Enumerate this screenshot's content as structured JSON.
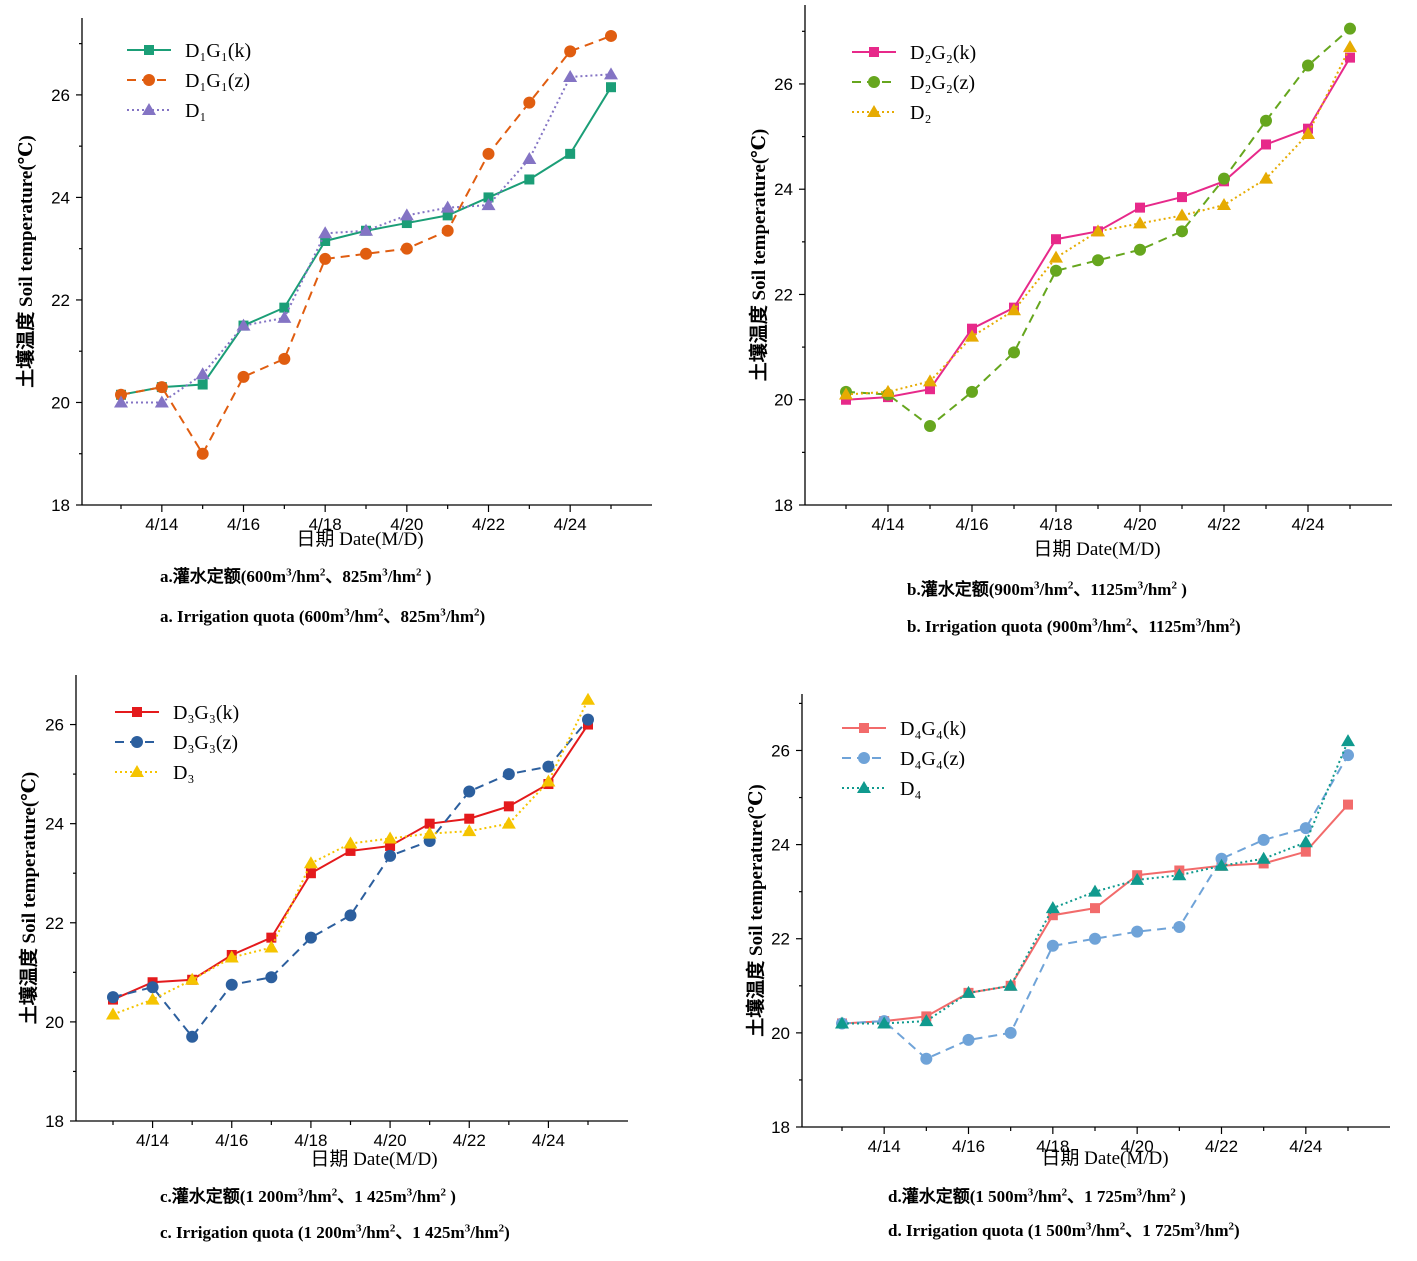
{
  "chart_data": [
    {
      "type": "line",
      "id": "a",
      "title": "",
      "ylabel": "土壤温度 Soil temperature(℃)",
      "xlabel": "日期  Date(M/D)",
      "x_ticks": [
        "4/14",
        "4/16",
        "4/18",
        "4/20",
        "4/22",
        "4/24"
      ],
      "x": [
        "4/13",
        "4/14",
        "4/15",
        "4/16",
        "4/17",
        "4/18",
        "4/19",
        "4/20",
        "4/21",
        "4/22",
        "4/23",
        "4/24",
        "4/25"
      ],
      "ylim": [
        18,
        27.5
      ],
      "y_ticks": [
        18,
        20,
        22,
        24,
        26
      ],
      "legend_position": "top-left",
      "grid": false,
      "series": [
        {
          "name": "D₁G₁(k)",
          "color": "#1b9e77",
          "marker": "square",
          "dash": "solid",
          "values": [
            20.15,
            20.3,
            20.35,
            21.5,
            21.85,
            23.15,
            23.35,
            23.5,
            23.65,
            24.0,
            24.35,
            24.85,
            26.15
          ]
        },
        {
          "name": "D₁G₁(z)",
          "color": "#e05d10",
          "marker": "circle",
          "dash": "dashed",
          "values": [
            20.15,
            20.3,
            19.0,
            20.5,
            20.85,
            22.8,
            22.9,
            23.0,
            23.35,
            24.85,
            25.85,
            26.85,
            27.15
          ]
        },
        {
          "name": "D₁",
          "color": "#8474c4",
          "marker": "triangle",
          "dash": "dotted",
          "values": [
            20.0,
            20.0,
            20.55,
            21.5,
            21.65,
            23.3,
            23.35,
            23.65,
            23.8,
            23.85,
            24.75,
            26.35,
            26.4
          ]
        }
      ]
    },
    {
      "type": "line",
      "id": "b",
      "title": "",
      "ylabel": "土壤温度 Soil temperature(℃)",
      "xlabel": "日期  Date(M/D)",
      "x_ticks": [
        "4/14",
        "4/16",
        "4/18",
        "4/20",
        "4/22",
        "4/24"
      ],
      "x": [
        "4/13",
        "4/14",
        "4/15",
        "4/16",
        "4/17",
        "4/18",
        "4/19",
        "4/20",
        "4/21",
        "4/22",
        "4/23",
        "4/24",
        "4/25"
      ],
      "ylim": [
        18,
        27.5
      ],
      "y_ticks": [
        18,
        20,
        22,
        24,
        26
      ],
      "legend_position": "top-left",
      "grid": false,
      "series": [
        {
          "name": "D₂G₂(k)",
          "color": "#e7298a",
          "marker": "square",
          "dash": "solid",
          "values": [
            20.0,
            20.05,
            20.2,
            21.35,
            21.75,
            23.05,
            23.2,
            23.65,
            23.85,
            24.15,
            24.85,
            25.15,
            26.5
          ]
        },
        {
          "name": "D₂G₂(z)",
          "color": "#66a61e",
          "marker": "circle",
          "dash": "dashed",
          "values": [
            20.15,
            20.1,
            19.5,
            20.15,
            20.9,
            22.45,
            22.65,
            22.85,
            23.2,
            24.2,
            25.3,
            26.35,
            27.05
          ]
        },
        {
          "name": "D₂",
          "color": "#e6ab02",
          "marker": "triangle",
          "dash": "dotted",
          "values": [
            20.1,
            20.15,
            20.35,
            21.2,
            21.7,
            22.7,
            23.2,
            23.35,
            23.5,
            23.7,
            24.2,
            25.05,
            26.7
          ]
        }
      ]
    },
    {
      "type": "line",
      "id": "c",
      "title": "",
      "ylabel": "土壤温度 Soil temperature(℃)",
      "xlabel": "日期  Date(M/D)",
      "x_ticks": [
        "4/14",
        "4/16",
        "4/18",
        "4/20",
        "4/22",
        "4/24"
      ],
      "x": [
        "4/13",
        "4/14",
        "4/15",
        "4/16",
        "4/17",
        "4/18",
        "4/19",
        "4/20",
        "4/21",
        "4/22",
        "4/23",
        "4/24",
        "4/25"
      ],
      "ylim": [
        18,
        27
      ],
      "y_ticks": [
        18,
        20,
        22,
        24,
        26
      ],
      "legend_position": "top-left",
      "grid": false,
      "series": [
        {
          "name": "D₃G₃(k)",
          "color": "#e41a1c",
          "marker": "square",
          "dash": "solid",
          "values": [
            20.45,
            20.8,
            20.85,
            21.35,
            21.7,
            23.0,
            23.45,
            23.55,
            24.0,
            24.1,
            24.35,
            24.8,
            26.0
          ]
        },
        {
          "name": "D₃G₃(z)",
          "color": "#2c5f9e",
          "marker": "circle",
          "dash": "dashed",
          "values": [
            20.5,
            20.7,
            19.7,
            20.75,
            20.9,
            21.7,
            22.15,
            23.35,
            23.65,
            24.65,
            25.0,
            25.15,
            26.1
          ]
        },
        {
          "name": "D₃",
          "color": "#f5c400",
          "marker": "triangle",
          "dash": "dotted",
          "values": [
            20.15,
            20.45,
            20.85,
            21.3,
            21.5,
            23.2,
            23.6,
            23.7,
            23.8,
            23.85,
            24.0,
            24.85,
            26.5
          ]
        }
      ]
    },
    {
      "type": "line",
      "id": "d",
      "title": "",
      "ylabel": "土壤温度 Soil temperature(℃)",
      "xlabel": "日期  Date(M/D)",
      "x_ticks": [
        "4/14",
        "4/16",
        "4/18",
        "4/20",
        "4/22",
        "4/24"
      ],
      "x": [
        "4/13",
        "4/14",
        "4/15",
        "4/16",
        "4/17",
        "4/18",
        "4/19",
        "4/20",
        "4/21",
        "4/22",
        "4/23",
        "4/24",
        "4/25"
      ],
      "ylim": [
        18,
        27.2
      ],
      "y_ticks": [
        18,
        20,
        22,
        24,
        26
      ],
      "legend_position": "top-left",
      "grid": false,
      "series": [
        {
          "name": "D₄G₄(k)",
          "color": "#f26b6b",
          "marker": "square",
          "dash": "solid",
          "values": [
            20.2,
            20.25,
            20.35,
            20.85,
            21.0,
            22.5,
            22.65,
            23.35,
            23.45,
            23.55,
            23.6,
            23.85,
            24.85
          ]
        },
        {
          "name": "D₄G₄(z)",
          "color": "#6fa3d8",
          "marker": "circle",
          "dash": "dashed",
          "values": [
            20.2,
            20.25,
            19.45,
            19.85,
            20.0,
            21.85,
            22.0,
            22.15,
            22.25,
            23.7,
            24.1,
            24.35,
            25.9
          ]
        },
        {
          "name": "D₄",
          "color": "#109a8e",
          "marker": "triangle",
          "dash": "dotted",
          "values": [
            20.2,
            20.2,
            20.25,
            20.85,
            21.0,
            22.65,
            23.0,
            23.25,
            23.35,
            23.55,
            23.7,
            24.05,
            26.2
          ]
        }
      ]
    }
  ],
  "captions": {
    "a": {
      "cn": {
        "prefix": "a.灌水定额(600m",
        "p1": "/hm",
        "p2": "、825m",
        "p3": "/hm",
        "end": " )"
      },
      "en": {
        "prefix": "a. Irrigation quota (600m",
        "p1": "/hm",
        "p2": "、825m",
        "p3": "/hm",
        "end": ")"
      }
    },
    "b": {
      "cn": {
        "prefix": "b.灌水定额(900m",
        "p1": "/hm",
        "p2": "、1125m",
        "p3": "/hm",
        "end": " )"
      },
      "en": {
        "prefix": "b. Irrigation quota (900m",
        "p1": "/hm",
        "p2": "、1125m",
        "p3": "/hm",
        "end": ")"
      }
    },
    "c": {
      "cn": {
        "prefix": "c.灌水定额(1 200m",
        "p1": "/hm",
        "p2": "、1  425m",
        "p3": "/hm",
        "end": " )"
      },
      "en": {
        "prefix": "c. Irrigation quota (1 200m",
        "p1": "/hm",
        "p2": "、1  425m",
        "p3": "/hm",
        "end": ")"
      }
    },
    "d": {
      "cn": {
        "prefix": "d.灌水定额(1 500m",
        "p1": "/hm",
        "p2": "、1 725m",
        "p3": "/hm",
        "end": " )"
      },
      "en": {
        "prefix": "d. Irrigation quota (1 500m",
        "p1": "/hm",
        "p2": "、1 725m",
        "p3": "/hm",
        "end": ")"
      }
    },
    "sup3": "3",
    "sup2": "2"
  }
}
